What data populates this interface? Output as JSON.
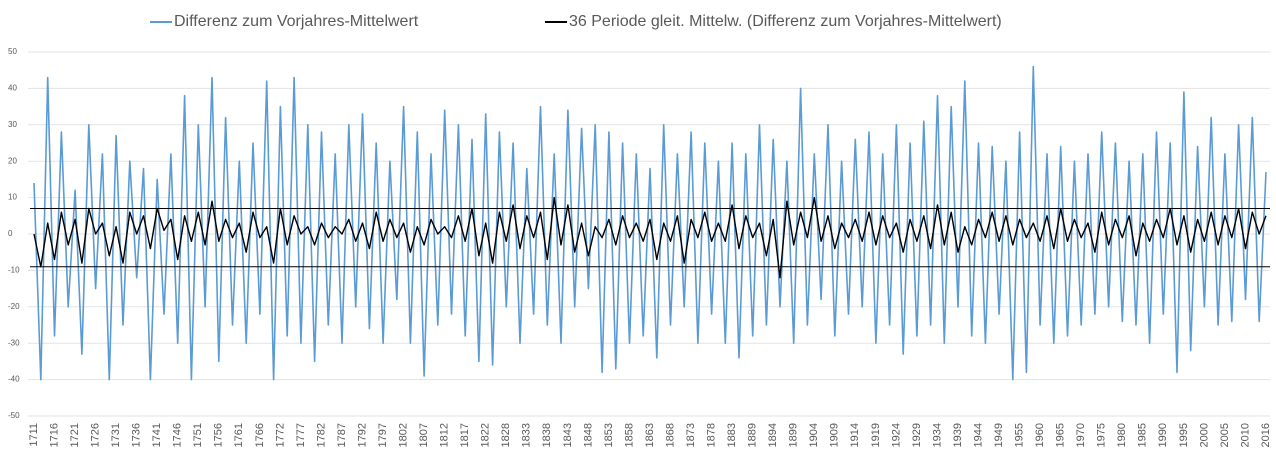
{
  "chart_data": {
    "type": "line",
    "categories": [
      "1711",
      null,
      null,
      "1716",
      null,
      null,
      "1721",
      null,
      null,
      "1726",
      null,
      null,
      "1731",
      null,
      null,
      "1736",
      null,
      null,
      "1741",
      null,
      null,
      "1746",
      null,
      null,
      "1751",
      null,
      null,
      "1756",
      null,
      null,
      "1761",
      null,
      null,
      "1766",
      null,
      null,
      "1772",
      null,
      null,
      "1777",
      null,
      null,
      "1782",
      null,
      null,
      "1787",
      null,
      null,
      "1792",
      null,
      null,
      "1797",
      null,
      null,
      "1802",
      null,
      null,
      "1807",
      null,
      null,
      "1812",
      null,
      null,
      "1817",
      null,
      null,
      "1822",
      null,
      null,
      "1828",
      null,
      null,
      "1833",
      null,
      null,
      "1838",
      null,
      null,
      "1843",
      null,
      null,
      "1848",
      null,
      null,
      "1853",
      null,
      null,
      "1858",
      null,
      null,
      "1863",
      null,
      null,
      "1868",
      null,
      null,
      "1873",
      null,
      null,
      "1878",
      null,
      null,
      "1883",
      null,
      null,
      "1889",
      null,
      null,
      "1894",
      null,
      null,
      "1899",
      null,
      null,
      "1904",
      null,
      null,
      "1909",
      null,
      null,
      "1914",
      null,
      null,
      "1919",
      null,
      null,
      "1924",
      null,
      null,
      "1929",
      null,
      null,
      "1934",
      null,
      null,
      "1939",
      null,
      null,
      "1944",
      null,
      null,
      "1949",
      null,
      null,
      "1955",
      null,
      null,
      "1960",
      null,
      null,
      "1965",
      null,
      null,
      "1970",
      null,
      null,
      "1975",
      null,
      null,
      "1980",
      null,
      null,
      "1985",
      null,
      null,
      "1990",
      null,
      null,
      "1995",
      null,
      null,
      "2000",
      null,
      null,
      "2005",
      null,
      null,
      "2010",
      null,
      null,
      "2016"
    ],
    "series": [
      {
        "name": "Differenz zum Vorjahres-Mittelwert",
        "color": "#5b9bd5",
        "values": [
          14,
          -40,
          43,
          -28,
          28,
          -20,
          12,
          -33,
          30,
          -15,
          22,
          -40,
          27,
          -25,
          20,
          -12,
          18,
          -40,
          15,
          -22,
          22,
          -30,
          38,
          -40,
          30,
          -20,
          43,
          -35,
          32,
          -25,
          20,
          -30,
          25,
          -22,
          42,
          -40,
          35,
          -28,
          43,
          -30,
          30,
          -35,
          28,
          -25,
          22,
          -30,
          30,
          -20,
          33,
          -26,
          25,
          -30,
          20,
          -18,
          35,
          -30,
          28,
          -39,
          22,
          -25,
          34,
          -22,
          30,
          -28,
          26,
          -35,
          33,
          -36,
          28,
          -20,
          25,
          -30,
          18,
          -22,
          35,
          -25,
          22,
          -30,
          34,
          -20,
          29,
          -15,
          30,
          -38,
          28,
          -37,
          25,
          -30,
          22,
          -28,
          18,
          -34,
          30,
          -25,
          22,
          -20,
          28,
          -30,
          25,
          -22,
          20,
          -30,
          25,
          -34,
          22,
          -28,
          30,
          -25,
          26,
          -20,
          20,
          -30,
          40,
          -25,
          22,
          -18,
          30,
          -28,
          20,
          -22,
          26,
          -20,
          28,
          -30,
          22,
          -25,
          30,
          -33,
          25,
          -28,
          31,
          -25,
          38,
          -30,
          35,
          -20,
          42,
          -28,
          25,
          -30,
          24,
          -22,
          20,
          -40,
          28,
          -38,
          46,
          -25,
          22,
          -30,
          24,
          -28,
          20,
          -25,
          22,
          -22,
          28,
          -20,
          25,
          -24,
          20,
          -25,
          22,
          -30,
          28,
          -22,
          25,
          -38,
          39,
          -32,
          24,
          -20,
          32,
          -25,
          22,
          -24,
          30,
          -18,
          32,
          -24,
          17
        ]
      },
      {
        "name": "36 Periode gleit. Mittelw. (Differenz zum Vorjahres-Mittelwert)",
        "color": "#000000",
        "values": [
          0,
          -9,
          3,
          -7,
          6,
          -3,
          4,
          -8,
          7,
          0,
          3,
          -6,
          2,
          -8,
          6,
          0,
          5,
          -4,
          7,
          1,
          4,
          -7,
          5,
          -2,
          6,
          -3,
          9,
          -2,
          4,
          -1,
          3,
          -5,
          6,
          -1,
          2,
          -8,
          7,
          -3,
          5,
          0,
          2,
          -3,
          3,
          -1,
          2,
          0,
          4,
          -2,
          3,
          -4,
          6,
          -2,
          4,
          -1,
          3,
          -5,
          2,
          -3,
          4,
          0,
          2,
          -1,
          5,
          -2,
          7,
          -6,
          3,
          -8,
          6,
          -2,
          8,
          -4,
          5,
          -1,
          6,
          -7,
          10,
          -3,
          8,
          -5,
          3,
          -6,
          2,
          -1,
          4,
          -3,
          5,
          -1,
          3,
          -2,
          4,
          -7,
          3,
          -2,
          5,
          -8,
          4,
          -1,
          6,
          -2,
          3,
          -2,
          8,
          -4,
          5,
          -1,
          3,
          -6,
          4,
          -12,
          9,
          -3,
          6,
          -1,
          10,
          -2,
          5,
          -4,
          3,
          -1,
          4,
          -2,
          6,
          -3,
          5,
          -1,
          3,
          -5,
          4,
          -2,
          5,
          -4,
          8,
          -3,
          6,
          -5,
          2,
          -3,
          4,
          -1,
          6,
          -2,
          5,
          -3,
          4,
          -1,
          3,
          -2,
          5,
          -4,
          7,
          -2,
          4,
          -1,
          3,
          -5,
          6,
          -3,
          4,
          -1,
          5,
          -6,
          3,
          -2,
          4,
          -1,
          7,
          -3,
          5,
          -5,
          4,
          -2,
          6,
          -3,
          5,
          -1,
          7,
          -4,
          6,
          0,
          5
        ]
      }
    ],
    "reference_lines": [
      7,
      -9
    ],
    "ylim": [
      -50,
      50
    ],
    "yticks": [
      -50,
      -40,
      -30,
      -20,
      -10,
      0,
      10,
      20,
      30,
      40,
      50
    ],
    "grid": true
  }
}
